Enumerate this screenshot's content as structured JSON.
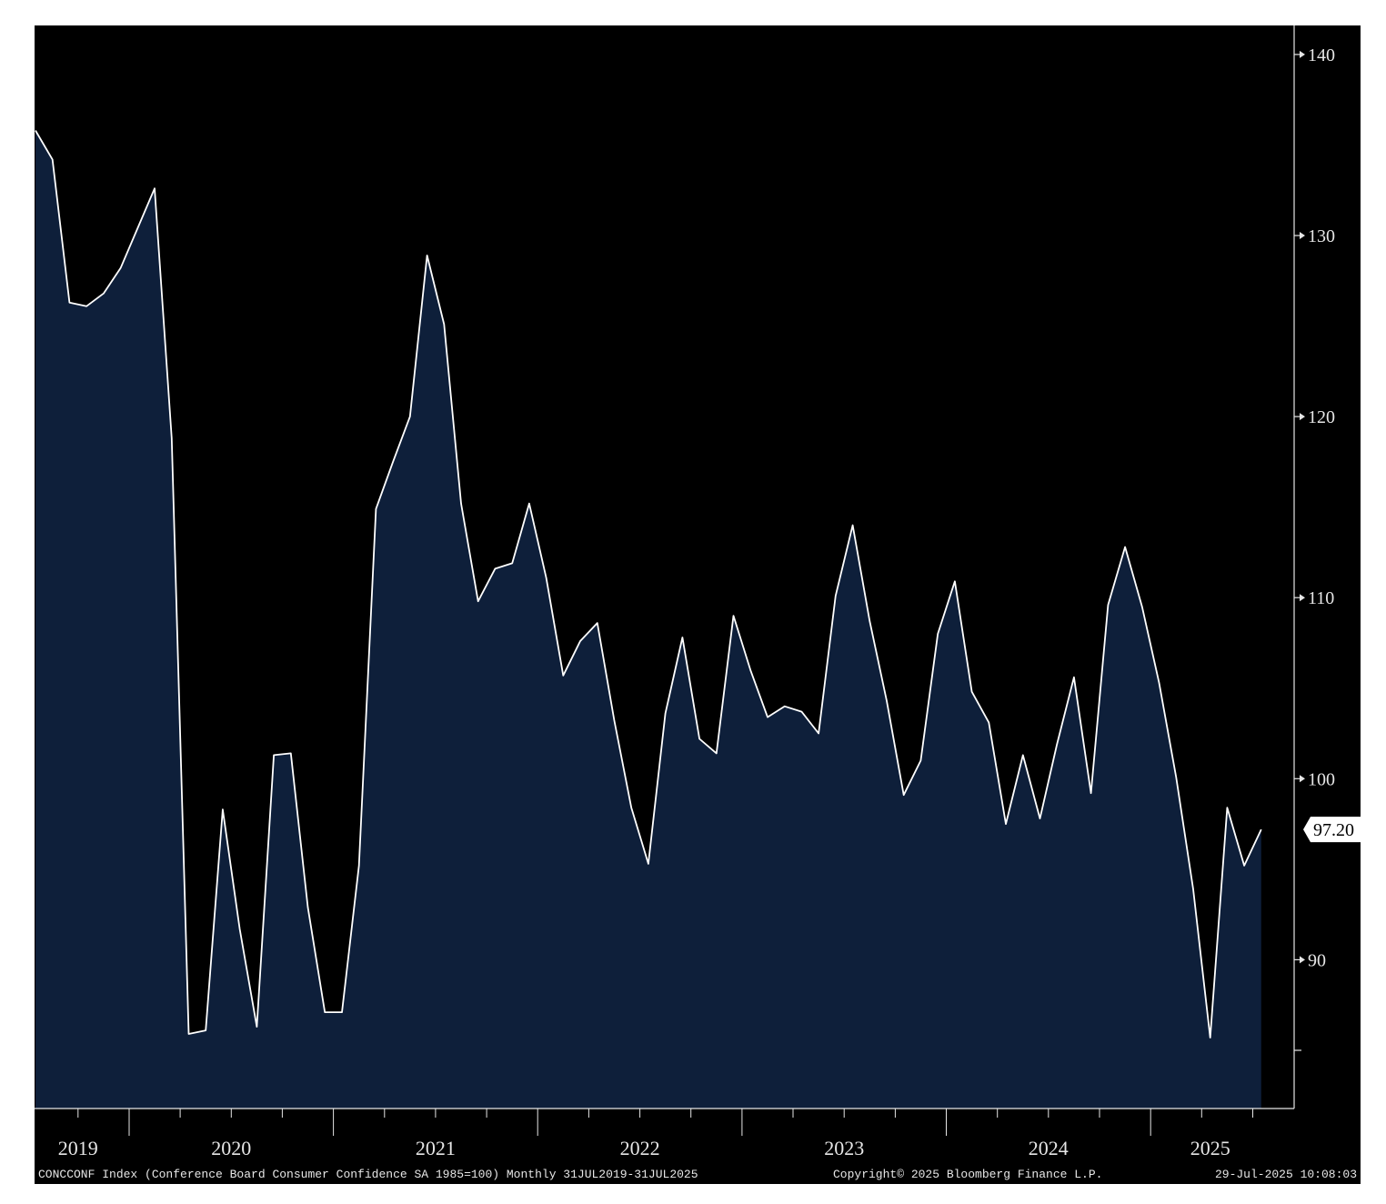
{
  "chart_data": {
    "type": "area",
    "title": "",
    "xlabel": "",
    "ylabel": "",
    "y_axis_side": "right",
    "ylim": [
      81,
      141
    ],
    "y_ticks": [
      90,
      100,
      110,
      120,
      130,
      140
    ],
    "x_year_labels": [
      "2019",
      "2020",
      "2021",
      "2022",
      "2023",
      "2024",
      "2025"
    ],
    "last_value_label": "97.20",
    "grid": false,
    "colors": {
      "background": "#000000",
      "area_fill": "#0e1f3a",
      "line": "#ffffff",
      "text": "#e6e6e6"
    },
    "series": [
      {
        "x": [
          "2019-07",
          "2019-08",
          "2019-09",
          "2019-10",
          "2019-11",
          "2019-12",
          "2020-01",
          "2020-02",
          "2020-03",
          "2020-04",
          "2020-05",
          "2020-06",
          "2020-07",
          "2020-08",
          "2020-09",
          "2020-10",
          "2020-11",
          "2020-12",
          "2021-01",
          "2021-02",
          "2021-03",
          "2021-04",
          "2021-05",
          "2021-06",
          "2021-07",
          "2021-08",
          "2021-09",
          "2021-10",
          "2021-11",
          "2021-12",
          "2022-01",
          "2022-02",
          "2022-03",
          "2022-04",
          "2022-05",
          "2022-06",
          "2022-07",
          "2022-08",
          "2022-09",
          "2022-10",
          "2022-11",
          "2022-12",
          "2023-01",
          "2023-02",
          "2023-03",
          "2023-04",
          "2023-05",
          "2023-06",
          "2023-07",
          "2023-08",
          "2023-09",
          "2023-10",
          "2023-11",
          "2023-12",
          "2024-01",
          "2024-02",
          "2024-03",
          "2024-04",
          "2024-05",
          "2024-06",
          "2024-07",
          "2024-08",
          "2024-09",
          "2024-10",
          "2024-11",
          "2024-12",
          "2025-01",
          "2025-02",
          "2025-03",
          "2025-04",
          "2025-05",
          "2025-06",
          "2025-07"
        ],
        "values": [
          135.8,
          134.2,
          126.3,
          126.1,
          126.8,
          128.2,
          130.4,
          132.6,
          118.8,
          85.9,
          86.1,
          98.3,
          91.7,
          86.3,
          101.3,
          101.4,
          92.9,
          87.1,
          87.1,
          95.2,
          114.9,
          117.5,
          120.0,
          128.9,
          125.1,
          115.2,
          109.8,
          111.6,
          111.9,
          115.2,
          111.1,
          105.7,
          107.6,
          108.6,
          103.2,
          98.4,
          95.3,
          103.6,
          107.8,
          102.2,
          101.4,
          109.0,
          106.0,
          103.4,
          104.0,
          103.7,
          102.5,
          110.1,
          114.0,
          108.7,
          104.3,
          99.1,
          101.0,
          108.0,
          110.9,
          104.8,
          103.1,
          97.5,
          101.3,
          97.8,
          101.9,
          105.6,
          99.2,
          109.6,
          112.8,
          109.5,
          105.3,
          100.1,
          93.9,
          85.7,
          98.4,
          95.2,
          97.2
        ]
      }
    ]
  },
  "footer": {
    "left": "CONCCONF Index (Conference Board Consumer Confidence SA 1985=100)  Monthly 31JUL2019-31JUL2025",
    "center": "Copyright© 2025 Bloomberg Finance L.P.",
    "right": "29-Jul-2025 10:08:03"
  }
}
